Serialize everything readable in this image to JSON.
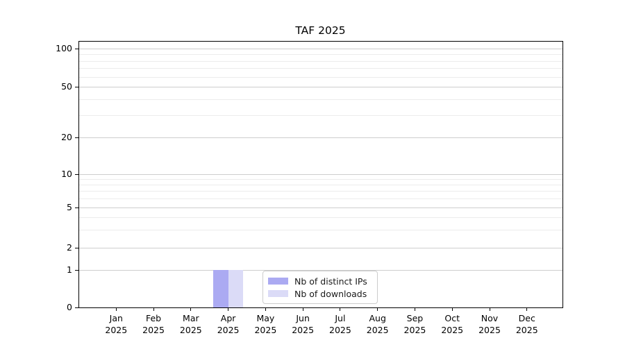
{
  "chart_data": {
    "type": "bar",
    "title": "TAF 2025",
    "categories": [
      "Jan 2025",
      "Feb 2025",
      "Mar 2025",
      "Apr 2025",
      "May 2025",
      "Jun 2025",
      "Jul 2025",
      "Aug 2025",
      "Sep 2025",
      "Oct 2025",
      "Nov 2025",
      "Dec 2025"
    ],
    "series": [
      {
        "name": "Nb of distinct IPs",
        "color": "#abaaf2",
        "values": [
          0,
          0,
          0,
          1,
          0,
          0,
          0,
          0,
          0,
          0,
          0,
          0
        ]
      },
      {
        "name": "Nb of downloads",
        "color": "#dbdbf7",
        "values": [
          0,
          0,
          0,
          1,
          0,
          0,
          0,
          0,
          0,
          0,
          0,
          0
        ]
      }
    ],
    "xlabel": "",
    "ylabel": "",
    "yscale": "symlog",
    "ylim": [
      0,
      113
    ],
    "yticks": [
      0,
      1,
      2,
      5,
      10,
      20,
      50,
      100
    ],
    "minor_yticks": [
      3,
      4,
      6,
      7,
      8,
      9,
      30,
      40,
      60,
      70,
      80,
      90
    ],
    "grid": "horizontal",
    "legend_position": "lower center",
    "colors": {
      "major_grid": "#cdcdcd",
      "minor_grid": "#ececec",
      "spine": "#000000",
      "background": "#ffffff"
    }
  }
}
